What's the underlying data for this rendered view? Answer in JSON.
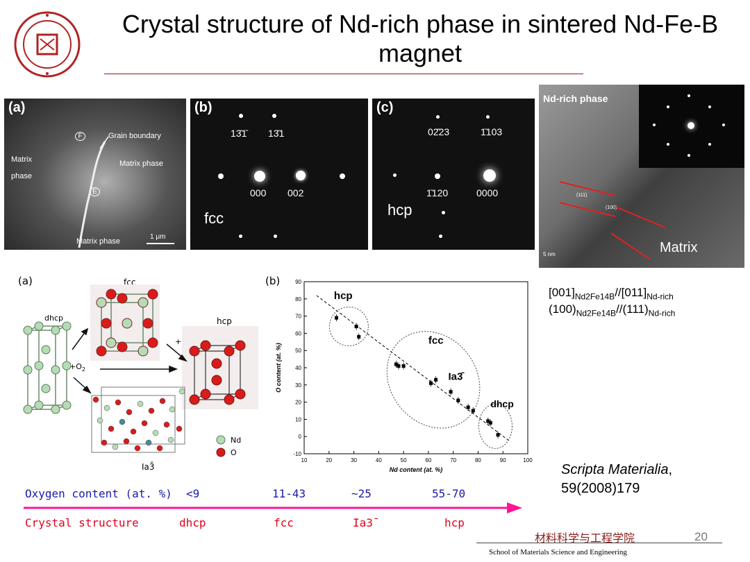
{
  "slide": {
    "title": "Crystal structure of Nd-rich phase in sintered Nd-Fe-B magnet",
    "page_number": "20",
    "footer_cn": "材料科学与工程学院",
    "footer_en": "School of Materials Science and Engineering"
  },
  "panels": {
    "a": {
      "label": "(a)",
      "grain_boundary": "Grain boundary",
      "matrix_left": "Matrix",
      "phase_left": "phase",
      "matrix_right": "Matrix phase",
      "matrix_bottom": "Matrix phase",
      "scale": "1 μm",
      "f_mark": "F",
      "e_mark": "E"
    },
    "b": {
      "label": "(b)",
      "spot1": "13̄1̄",
      "spot2": "13̄1",
      "spot3": "000",
      "spot4": "002",
      "lattice": "fcc"
    },
    "c": {
      "label": "(c)",
      "spot1": "02̄23",
      "spot2": "1̄103",
      "spot3": "1̄120",
      "spot4": "0000",
      "lattice": "hcp"
    },
    "d": {
      "label": "Nd-rich phase",
      "matrix": "Matrix",
      "scale": "5 nm",
      "plane1": "(111)",
      "plane2": "(100)"
    }
  },
  "orientation": {
    "line1_main": "[001]",
    "line1_sub1": "Nd2Fe14B",
    "line1_mid": "//[011]",
    "line1_sub2": "Nd-rich",
    "line2_main": "(100)",
    "line2_sub1": "Nd2Fe14B",
    "line2_mid": "//(111)",
    "line2_sub2": "Nd-rich"
  },
  "structure_fig": {
    "label": "(a)",
    "dhcp": "dhcp",
    "fcc": "fcc",
    "hcp": "hcp",
    "ia3": "Ia3̄",
    "o2_1": "+O",
    "o2_2": "+O",
    "o2_sub": "2",
    "legend_nd": "Nd",
    "legend_o": "O"
  },
  "chart_data": {
    "type": "scatter",
    "label": "(b)",
    "xlabel": "Nd content (at. %)",
    "ylabel": "O content (at. %)",
    "xlim": [
      10,
      100
    ],
    "ylim": [
      -10,
      90
    ],
    "xticks": [
      10,
      20,
      30,
      40,
      50,
      60,
      70,
      80,
      90,
      100
    ],
    "yticks": [
      -10,
      0,
      10,
      20,
      30,
      40,
      50,
      60,
      70,
      80,
      90
    ],
    "points": [
      {
        "x": 23,
        "y": 69
      },
      {
        "x": 31,
        "y": 64
      },
      {
        "x": 32,
        "y": 58
      },
      {
        "x": 47,
        "y": 42
      },
      {
        "x": 48,
        "y": 41
      },
      {
        "x": 50,
        "y": 41
      },
      {
        "x": 61,
        "y": 31
      },
      {
        "x": 63,
        "y": 33
      },
      {
        "x": 69,
        "y": 26
      },
      {
        "x": 72,
        "y": 21
      },
      {
        "x": 76,
        "y": 17
      },
      {
        "x": 78,
        "y": 15
      },
      {
        "x": 84,
        "y": 9
      },
      {
        "x": 85,
        "y": 8
      },
      {
        "x": 88,
        "y": 1
      }
    ],
    "fit": [
      [
        15,
        82
      ],
      [
        93,
        -3
      ]
    ],
    "regions": {
      "hcp": "hcp",
      "fcc": "fcc",
      "ia3": "Ia3̄",
      "dhcp": "dhcp"
    }
  },
  "table": {
    "row1_label": "Oxygen content (at. %)",
    "row1_values": [
      "<9",
      "11-43",
      "~25",
      "55-70"
    ],
    "row2_label": "Crystal structure",
    "row2_values": [
      "dhcp",
      "fcc",
      "Ia3̄",
      "hcp"
    ],
    "colors": {
      "blue": "#1a1aa8",
      "red": "#e0001a",
      "arrow": "#ff1493"
    }
  },
  "reference": {
    "journal": "Scripta Materialia",
    "citation": "59(2008)179"
  }
}
